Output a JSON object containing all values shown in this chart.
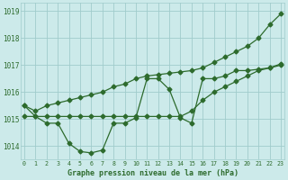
{
  "x": [
    0,
    1,
    2,
    3,
    4,
    5,
    6,
    7,
    8,
    9,
    10,
    11,
    12,
    13,
    14,
    15,
    16,
    17,
    18,
    19,
    20,
    21,
    22,
    23
  ],
  "line_wavy": [
    1015.5,
    1015.1,
    1014.85,
    1014.85,
    1014.1,
    1013.8,
    1013.75,
    1013.85,
    1014.85,
    1014.85,
    1015.05,
    1016.5,
    1016.5,
    1016.1,
    1015.05,
    1014.85,
    1016.5,
    1016.5,
    1016.6,
    1016.8,
    1016.8,
    1016.85,
    1016.9,
    1017.0
  ],
  "line_flat": [
    1015.1,
    1015.1,
    1015.1,
    1015.1,
    1015.1,
    1015.1,
    1015.1,
    1015.1,
    1015.1,
    1015.1,
    1015.1,
    1015.1,
    1015.1,
    1015.1,
    1015.1,
    1015.3,
    1015.7,
    1016.0,
    1016.2,
    1016.4,
    1016.6,
    1016.8,
    1016.9,
    1017.05
  ],
  "line_diagonal": [
    1015.5,
    1015.3,
    1015.5,
    1015.6,
    1015.7,
    1015.8,
    1015.9,
    1016.0,
    1016.2,
    1016.3,
    1016.5,
    1016.6,
    1016.65,
    1016.7,
    1016.75,
    1016.8,
    1016.9,
    1017.1,
    1017.3,
    1017.5,
    1017.7,
    1018.0,
    1018.5,
    1018.9
  ],
  "bg_color": "#cceaea",
  "line_color": "#2d6b2d",
  "grid_color": "#a0cccc",
  "tick_color": "#2d6b2d",
  "xlabel": "Graphe pression niveau de la mer (hPa)",
  "ylim": [
    1013.5,
    1019.3
  ],
  "xlim": [
    -0.3,
    23.3
  ],
  "yticks": [
    1014,
    1015,
    1016,
    1017,
    1018,
    1019
  ],
  "xticks": [
    0,
    1,
    2,
    3,
    4,
    5,
    6,
    7,
    8,
    9,
    10,
    11,
    12,
    13,
    14,
    15,
    16,
    17,
    18,
    19,
    20,
    21,
    22,
    23
  ],
  "markersize": 2.5,
  "linewidth": 0.9
}
